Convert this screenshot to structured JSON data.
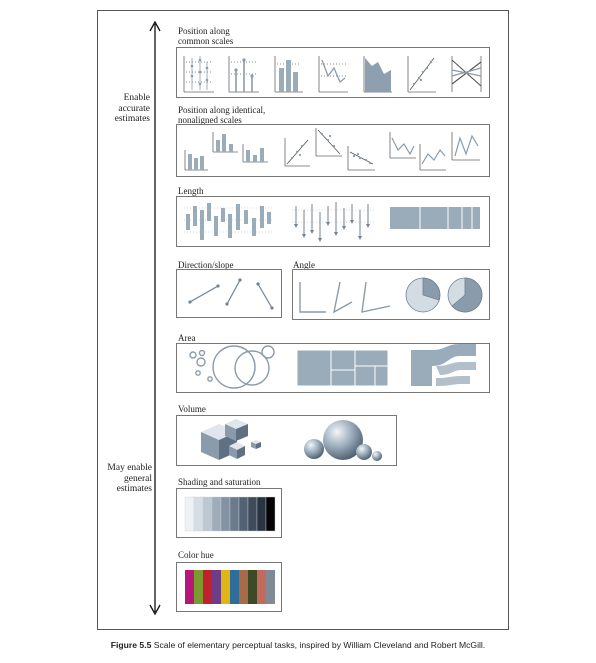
{
  "sidebar": {
    "top_label_lines": [
      "Enable",
      "accurate",
      "estimates"
    ],
    "bottom_label_lines": [
      "May enable",
      "general",
      "estimates"
    ]
  },
  "sections": {
    "position_common": [
      "Position along",
      "common scales"
    ],
    "position_nonaligned": [
      "Position along identical,",
      "nonaligned scales"
    ],
    "length": "Length",
    "direction": "Direction/slope",
    "angle": "Angle",
    "area": "Area",
    "volume": "Volume",
    "shading": "Shading and saturation",
    "hue": "Color hue"
  },
  "colors": {
    "accent": "#9aabba",
    "dark_accent": "#6f8394",
    "line": "#666666",
    "hue_swatches": [
      "#b5177a",
      "#7a9a2e",
      "#c3202f",
      "#6d3d87",
      "#e0b615",
      "#2f6e9a",
      "#a86b4a",
      "#3e4a27",
      "#c46a5d",
      "#808a94"
    ],
    "shading_swatches": [
      "#eef2f5",
      "#d6dee5",
      "#bcc8d2",
      "#9fadbb",
      "#8393a3",
      "#6b7b8c",
      "#546374",
      "#3e4b5a",
      "#2a3440",
      "#050505"
    ]
  },
  "caption": {
    "figure_label": "Figure 5.5",
    "text": "Scale of elementary perceptual tasks, inspired by William Cleveland and Robert McGill."
  }
}
